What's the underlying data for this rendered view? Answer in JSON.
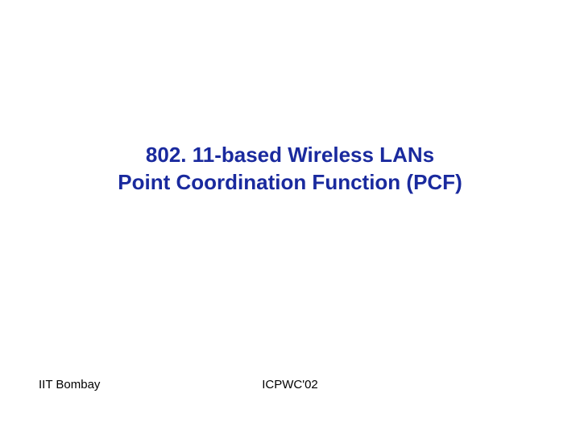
{
  "slide": {
    "title_line1": "802. 11-based Wireless LANs",
    "title_line2": "Point Coordination Function (PCF)",
    "title_color": "#1a2a9e",
    "title_fontsize": 26,
    "title_fontweight": "bold",
    "background_color": "#ffffff"
  },
  "footer": {
    "left_text": "IIT Bombay",
    "center_text": "ICPWC'02",
    "text_color": "#000000",
    "fontsize": 15
  }
}
